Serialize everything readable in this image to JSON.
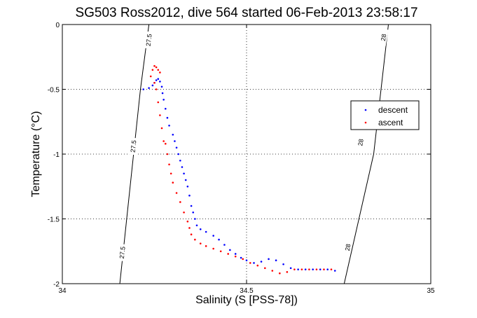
{
  "chart_data": {
    "type": "scatter",
    "title": "SG503 Ross2012, dive 564 started 06-Feb-2013 23:58:17",
    "xlabel": "Salinity (S [PSS-78])",
    "ylabel": "Temperature (°C)",
    "xlim": [
      34,
      35
    ],
    "ylim": [
      -2,
      0
    ],
    "x_ticks": [
      34,
      34.5,
      35
    ],
    "x_tick_labels": [
      "34",
      "34.5",
      "35"
    ],
    "y_ticks": [
      0,
      -0.5,
      -1,
      -1.5,
      -2
    ],
    "y_tick_labels": [
      "0",
      "-0.5",
      "-1",
      "-1.5",
      "-2"
    ],
    "grid": true,
    "legend_position": "right",
    "density_contours": [
      {
        "label": "27.5",
        "points": [
          [
            34.156,
            -2.0
          ],
          [
            34.212,
            -0.5
          ],
          [
            34.235,
            0.0
          ]
        ],
        "label_positions": [
          [
            34.235,
            -0.12
          ],
          [
            34.193,
            -0.94
          ],
          [
            34.163,
            -1.76
          ]
        ]
      },
      {
        "label": "28",
        "points": [
          [
            34.765,
            -2.0
          ],
          [
            34.845,
            -1.0
          ],
          [
            34.885,
            0.0
          ]
        ],
        "label_positions": [
          [
            34.872,
            -0.1
          ],
          [
            34.81,
            -0.91
          ],
          [
            34.775,
            -1.72
          ]
        ]
      }
    ],
    "series": [
      {
        "name": "descent",
        "color": "#0000ff",
        "points": [
          [
            34.22,
            -0.5
          ],
          [
            34.235,
            -0.49
          ],
          [
            34.245,
            -0.47
          ],
          [
            34.25,
            -0.45
          ],
          [
            34.255,
            -0.43
          ],
          [
            34.26,
            -0.42
          ],
          [
            34.265,
            -0.44
          ],
          [
            34.27,
            -0.48
          ],
          [
            34.272,
            -0.53
          ],
          [
            34.275,
            -0.58
          ],
          [
            34.28,
            -0.65
          ],
          [
            34.285,
            -0.72
          ],
          [
            34.29,
            -0.78
          ],
          [
            34.3,
            -0.85
          ],
          [
            34.305,
            -0.9
          ],
          [
            34.31,
            -0.95
          ],
          [
            34.315,
            -1.0
          ],
          [
            34.32,
            -1.05
          ],
          [
            34.325,
            -1.1
          ],
          [
            34.33,
            -1.15
          ],
          [
            34.335,
            -1.2
          ],
          [
            34.34,
            -1.25
          ],
          [
            34.345,
            -1.32
          ],
          [
            34.35,
            -1.4
          ],
          [
            34.355,
            -1.45
          ],
          [
            34.36,
            -1.5
          ],
          [
            34.365,
            -1.55
          ],
          [
            34.375,
            -1.58
          ],
          [
            34.39,
            -1.6
          ],
          [
            34.41,
            -1.63
          ],
          [
            34.425,
            -1.66
          ],
          [
            34.44,
            -1.7
          ],
          [
            34.455,
            -1.74
          ],
          [
            34.47,
            -1.77
          ],
          [
            34.485,
            -1.8
          ],
          [
            34.5,
            -1.82
          ],
          [
            34.52,
            -1.84
          ],
          [
            34.54,
            -1.83
          ],
          [
            34.56,
            -1.81
          ],
          [
            34.58,
            -1.82
          ],
          [
            34.6,
            -1.85
          ],
          [
            34.62,
            -1.88
          ],
          [
            34.64,
            -1.89
          ],
          [
            34.66,
            -1.89
          ],
          [
            34.68,
            -1.89
          ],
          [
            34.7,
            -1.89
          ],
          [
            34.72,
            -1.89
          ],
          [
            34.74,
            -1.9
          ]
        ]
      },
      {
        "name": "ascent",
        "color": "#ff0000",
        "points": [
          [
            34.245,
            -0.35
          ],
          [
            34.25,
            -0.32
          ],
          [
            34.255,
            -0.33
          ],
          [
            34.26,
            -0.35
          ],
          [
            34.265,
            -0.37
          ],
          [
            34.24,
            -0.4
          ],
          [
            34.25,
            -0.45
          ],
          [
            34.255,
            -0.5
          ],
          [
            34.26,
            -0.6
          ],
          [
            34.265,
            -0.7
          ],
          [
            34.27,
            -0.8
          ],
          [
            34.275,
            -0.9
          ],
          [
            34.28,
            -0.92
          ],
          [
            34.285,
            -1.0
          ],
          [
            34.29,
            -1.08
          ],
          [
            34.295,
            -1.15
          ],
          [
            34.3,
            -1.22
          ],
          [
            34.31,
            -1.3
          ],
          [
            34.32,
            -1.37
          ],
          [
            34.33,
            -1.45
          ],
          [
            34.34,
            -1.52
          ],
          [
            34.345,
            -1.57
          ],
          [
            34.35,
            -1.62
          ],
          [
            34.36,
            -1.66
          ],
          [
            34.375,
            -1.69
          ],
          [
            34.39,
            -1.71
          ],
          [
            34.41,
            -1.73
          ],
          [
            34.43,
            -1.75
          ],
          [
            34.45,
            -1.77
          ],
          [
            34.47,
            -1.79
          ],
          [
            34.49,
            -1.81
          ],
          [
            34.51,
            -1.84
          ],
          [
            34.53,
            -1.86
          ],
          [
            34.55,
            -1.88
          ],
          [
            34.57,
            -1.9
          ],
          [
            34.59,
            -1.92
          ],
          [
            34.61,
            -1.91
          ],
          [
            34.63,
            -1.89
          ],
          [
            34.65,
            -1.89
          ],
          [
            34.67,
            -1.89
          ],
          [
            34.69,
            -1.89
          ],
          [
            34.71,
            -1.89
          ],
          [
            34.73,
            -1.89
          ]
        ]
      }
    ]
  }
}
